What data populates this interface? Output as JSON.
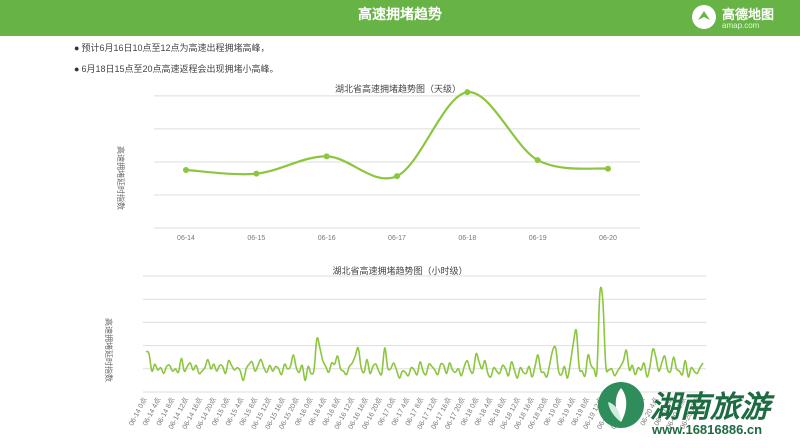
{
  "header": {
    "title": "高速拥堵趋势",
    "logo_name": "高德地图",
    "logo_domain": "amap.com"
  },
  "notes": [
    "预计6月16日10点至12点为高速出程拥堵高峰，",
    "6月18日15点至20点高速返程会出现拥堵小高峰。"
  ],
  "watermark": {
    "name": "湖南旅游",
    "url": "www.16816886.cn"
  },
  "colors": {
    "header": "#67b346",
    "line": "#8cc63f",
    "grid": "#dddddd"
  },
  "chart_data": [
    {
      "type": "line",
      "title": "湖北省高速拥堵趋势图（天级）",
      "ylabel": "高速拥堵延时指数",
      "x": [
        "06-14",
        "06-15",
        "06-16",
        "06-17",
        "06-18",
        "06-19",
        "06-20"
      ],
      "values": [
        1.47,
        1.44,
        1.58,
        1.42,
        2.1,
        1.55,
        1.48
      ],
      "ylim": [
        1.0,
        2.15
      ],
      "grid": true,
      "markers": true
    },
    {
      "type": "line",
      "title": "湖北省高速拥堵趋势图（小时级）",
      "ylabel": "高速拥堵延时指数",
      "tick_labels": [
        "06-14 0点",
        "06-14 4点",
        "06-14 8点",
        "06-14 12点",
        "06-14 16点",
        "06-14 20点",
        "06-15 0点",
        "06-15 4点",
        "06-15 8点",
        "06-15 12点",
        "06-15 16点",
        "06-15 20点",
        "06-16 0点",
        "06-16 4点",
        "06-16 8点",
        "06-16 12点",
        "06-16 16点",
        "06-16 20点",
        "06-17 0点",
        "06-17 4点",
        "06-17 8点",
        "06-17 12点",
        "06-17 16点",
        "06-17 20点",
        "06-18 0点",
        "06-18 4点",
        "06-18 8点",
        "06-18 12点",
        "06-18 16点",
        "06-18 20点",
        "06-19 0点",
        "06-19 4点",
        "06-19 8点",
        "06-19 12点",
        "06-19 16点",
        "06-19 20点",
        "06-20 0点",
        "06-20 4点",
        "06-20 8点",
        "06-20 12点",
        "06-20 16点"
      ],
      "values": [
        1.35,
        1.33,
        1.18,
        1.24,
        1.19,
        1.21,
        1.16,
        1.22,
        1.23,
        1.18,
        1.2,
        1.17,
        1.29,
        1.18,
        1.22,
        1.25,
        1.19,
        1.23,
        1.16,
        1.18,
        1.21,
        1.28,
        1.2,
        1.24,
        1.18,
        1.23,
        1.22,
        1.16,
        1.27,
        1.23,
        1.19,
        1.21,
        1.18,
        1.1,
        1.2,
        1.24,
        1.26,
        1.18,
        1.23,
        1.28,
        1.21,
        1.17,
        1.23,
        1.18,
        1.22,
        1.2,
        1.15,
        1.24,
        1.2,
        1.22,
        1.32,
        1.21,
        1.17,
        1.23,
        1.1,
        1.22,
        1.16,
        1.19,
        1.46,
        1.38,
        1.27,
        1.22,
        1.17,
        1.25,
        1.24,
        1.31,
        1.2,
        1.18,
        1.15,
        1.22,
        1.25,
        1.31,
        1.38,
        1.21,
        1.17,
        1.28,
        1.16,
        1.22,
        1.24,
        1.18,
        1.16,
        1.38,
        1.21,
        1.2,
        1.25,
        1.19,
        1.12,
        1.18,
        1.17,
        1.14,
        1.21,
        1.19,
        1.15,
        1.26,
        1.18,
        1.15,
        1.24,
        1.22,
        1.19,
        1.15,
        1.24,
        1.23,
        1.16,
        1.25,
        1.19,
        1.17,
        1.2,
        1.14,
        1.22,
        1.27,
        1.19,
        1.17,
        1.33,
        1.26,
        1.2,
        1.27,
        1.16,
        1.13,
        1.21,
        1.18,
        1.16,
        1.23,
        1.2,
        1.14,
        1.26,
        1.19,
        1.12,
        1.21,
        1.17,
        1.16,
        1.22,
        1.13,
        1.22,
        1.32,
        1.18,
        1.17,
        1.13,
        1.24,
        1.36,
        1.38,
        1.18,
        1.15,
        1.22,
        1.12,
        1.25,
        1.42,
        1.53,
        1.21,
        1.18,
        1.14,
        1.32,
        1.23,
        1.2,
        1.18,
        1.85,
        1.79,
        1.23,
        1.19,
        1.2,
        1.14,
        1.18,
        1.22,
        1.27,
        1.36,
        1.19,
        1.23,
        1.15,
        1.21,
        1.19,
        1.25,
        1.13,
        1.22,
        1.37,
        1.3,
        1.18,
        1.25,
        1.31,
        1.19,
        1.18,
        1.3,
        1.2,
        1.18,
        1.15,
        1.27,
        1.13,
        1.21,
        1.18,
        1.16,
        1.21,
        1.25
      ],
      "ylim": [
        1.0,
        2.0
      ],
      "grid": true
    }
  ]
}
